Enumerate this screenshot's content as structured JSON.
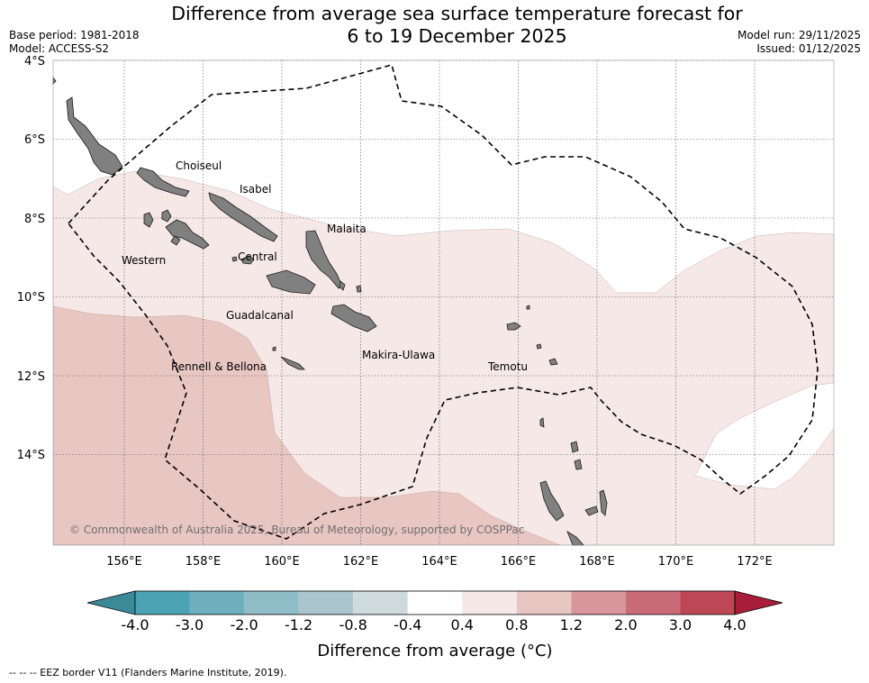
{
  "title": {
    "line1": "Difference from average sea surface temperature forecast for",
    "line2": "6 to 19 December 2025"
  },
  "meta": {
    "base_period": "Base period: 1981-2018",
    "model": "Model: ACCESS-S2",
    "model_run": "Model run: 29/11/2025",
    "issued": "Issued: 01/12/2025"
  },
  "map": {
    "lat_labels": [
      "4°S",
      "6°S",
      "8°S",
      "10°S",
      "12°S",
      "14°S"
    ],
    "lon_labels": [
      "156°E",
      "158°E",
      "160°E",
      "162°E",
      "164°E",
      "166°E",
      "168°E",
      "170°E",
      "172°E"
    ],
    "provinces": [
      "Choiseul",
      "Isabel",
      "Malaita",
      "Western",
      "Central",
      "Guadalcanal",
      "Rennell & Bellona",
      "Makira-Ulawa",
      "Temotu"
    ],
    "copyright": "© Commonwealth of Australia 2025, Bureau of Meteorology, supported by COSPPac",
    "colors": {
      "anomaly_0_4_to_0_8": "#f5e8e6",
      "anomaly_0_8_to_1_2": "#e8c6c2",
      "land": "#808080",
      "eez_border": "#000000"
    }
  },
  "colorbar": {
    "ticks": [
      "-4.0",
      "-3.0",
      "-2.0",
      "-1.2",
      "-0.8",
      "-0.4",
      "0.4",
      "0.8",
      "1.2",
      "2.0",
      "3.0",
      "4.0"
    ],
    "colors": [
      "#3a8a98",
      "#4ba3b4",
      "#6fb0bf",
      "#8ebcc7",
      "#aac6cc",
      "#cfdadd",
      "#ffffff",
      "#f5e8e6",
      "#e8c6c2",
      "#d8959c",
      "#c96b76",
      "#bd4755",
      "#a81d3a"
    ],
    "label": "Difference from average (°C)"
  },
  "footnote": "--  --  -- EEZ border V11 (Flanders Marine Institute, 2019)."
}
